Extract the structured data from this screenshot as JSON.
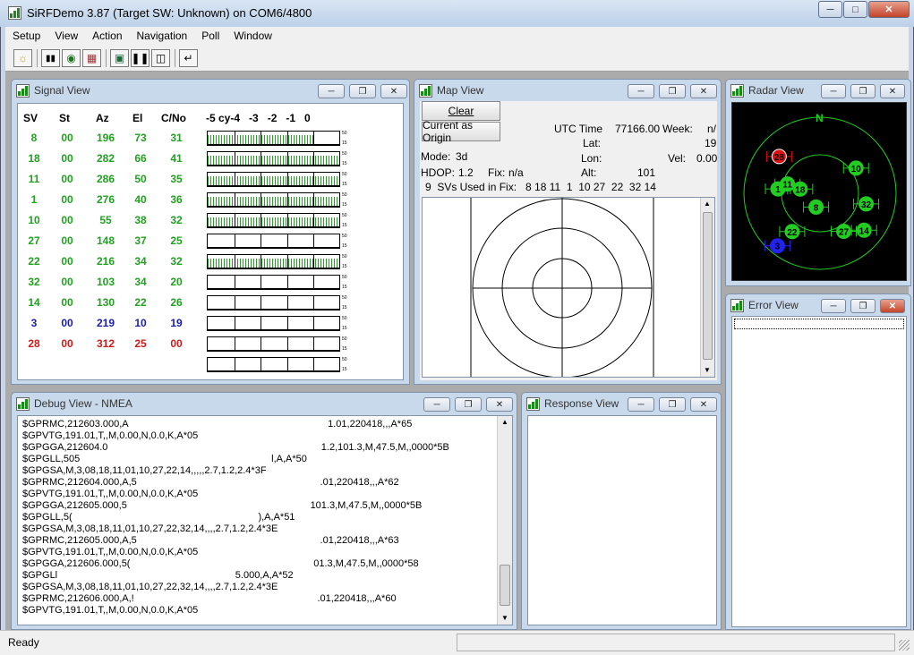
{
  "app": {
    "title": "SiRFDemo 3.87 (Target SW: Unknown) on COM6/4800"
  },
  "menu": [
    "Setup",
    "View",
    "Action",
    "Navigation",
    "Poll",
    "Window"
  ],
  "toolbar": {
    "icons": [
      "sun-icon",
      "signal-icon",
      "radar-icon",
      "grid-icon",
      "connect-icon",
      "pause-icon",
      "save-icon",
      "return-icon"
    ]
  },
  "signal_view": {
    "title": "Signal View",
    "headers": {
      "sv": "SV",
      "st": "St",
      "az": "Az",
      "el": "El",
      "cno": "C/No",
      "scale": "-5 cy-4   -3   -2   -1   0"
    },
    "scale_top": "50",
    "scale_bottom": "15",
    "rows": [
      {
        "sv": "8",
        "st": "00",
        "az": "196",
        "el": "73",
        "cno": "31",
        "color": "#22a022",
        "fill_pct": 80
      },
      {
        "sv": "18",
        "st": "00",
        "az": "282",
        "el": "66",
        "cno": "41",
        "color": "#22a022",
        "fill_pct": 100
      },
      {
        "sv": "11",
        "st": "00",
        "az": "286",
        "el": "50",
        "cno": "35",
        "color": "#22a022",
        "fill_pct": 100
      },
      {
        "sv": "1",
        "st": "00",
        "az": "276",
        "el": "40",
        "cno": "36",
        "color": "#22a022",
        "fill_pct": 100
      },
      {
        "sv": "10",
        "st": "00",
        "az": "55",
        "el": "38",
        "cno": "32",
        "color": "#22a022",
        "fill_pct": 100
      },
      {
        "sv": "27",
        "st": "00",
        "az": "148",
        "el": "37",
        "cno": "25",
        "color": "#22a022",
        "fill_pct": 0
      },
      {
        "sv": "22",
        "st": "00",
        "az": "216",
        "el": "34",
        "cno": "32",
        "color": "#22a022",
        "fill_pct": 100
      },
      {
        "sv": "32",
        "st": "00",
        "az": "103",
        "el": "34",
        "cno": "20",
        "color": "#22a022",
        "fill_pct": 0
      },
      {
        "sv": "14",
        "st": "00",
        "az": "130",
        "el": "22",
        "cno": "26",
        "color": "#22a022",
        "fill_pct": 0
      },
      {
        "sv": "3",
        "st": "00",
        "az": "219",
        "el": "10",
        "cno": "19",
        "color": "#1c1cb0",
        "fill_pct": 0
      },
      {
        "sv": "28",
        "st": "00",
        "az": "312",
        "el": "25",
        "cno": "00",
        "color": "#cc1c1c",
        "fill_pct": 0
      },
      {
        "sv": "",
        "st": "",
        "az": "",
        "el": "",
        "cno": "",
        "color": "#000000",
        "fill_pct": 0
      }
    ]
  },
  "map_view": {
    "title": "Map View",
    "clear_label": "Clear",
    "origin_label": "Current as Origin",
    "utc_label": "UTC Time",
    "utc_value": "77166.00",
    "week_label": "Week:",
    "week_value": "n/",
    "lat_label": "Lat:",
    "lat_value": "19",
    "lon_label": "Lon:",
    "vel_label": "Vel:",
    "vel_value": "0.00",
    "mode_label": "Mode:",
    "mode_value": "3d",
    "hdop_label": "HDOP:",
    "hdop_value": "1.2",
    "fix_label": "Fix:",
    "fix_value": "n/a",
    "alt_label": "Alt:",
    "alt_value": "101",
    "svs_text": "9  SVs Used in Fix:   8 18 11  1  10 27  22  32 14"
  },
  "radar_view": {
    "title": "Radar View",
    "north_label": "N",
    "satellites": [
      {
        "id": "28",
        "color": "#dd1111",
        "az": 312,
        "el": 25
      },
      {
        "id": "10",
        "color": "#22cc22",
        "az": 55,
        "el": 38
      },
      {
        "id": "1",
        "color": "#22cc22",
        "az": 276,
        "el": 40
      },
      {
        "id": "11",
        "color": "#22cc22",
        "az": 286,
        "el": 50
      },
      {
        "id": "18",
        "color": "#22cc22",
        "az": 282,
        "el": 66
      },
      {
        "id": "32",
        "color": "#22cc22",
        "az": 103,
        "el": 34
      },
      {
        "id": "8",
        "color": "#22cc22",
        "az": 196,
        "el": 73
      },
      {
        "id": "22",
        "color": "#22cc22",
        "az": 216,
        "el": 34
      },
      {
        "id": "27",
        "color": "#22cc22",
        "az": 148,
        "el": 37
      },
      {
        "id": "14",
        "color": "#22cc22",
        "az": 130,
        "el": 22
      },
      {
        "id": "3",
        "color": "#2222ee",
        "az": 219,
        "el": 10
      }
    ]
  },
  "error_view": {
    "title": "Error View"
  },
  "debug_view": {
    "title": "Debug View - NMEA",
    "lines": [
      "$GPRMC,212603.000,A                                                                         1.01,220418,,,A*65",
      "$GPVTG,191.01,T,,M,0.00,N,0.0,K,A*05",
      "$GPGGA,212604.0                                                                              1.2,101.3,M,47.5,M,,0000*5B",
      "$GPGLL,505                                                                      l,A,A*50",
      "$GPGSA,M,3,08,18,11,01,10,27,22,14,,,,,2.7,1.2,2.4*3F",
      "$GPRMC,212604.000,A,5                                                                   .01,220418,,,A*62",
      "$GPVTG,191.01,T,,M,0.00,N,0.0,K,A*05",
      "$GPGGA,212605.000,5                                                                   101.3,M,47.5,M,,0000*5B",
      "$GPGLL,5(                                                                    ),A,A*51",
      "$GPGSA,M,3,08,18,11,01,10,27,22,32,14,,,,2.7,1.2,2.4*3E",
      "$GPRMC,212605.000,A,5                                                                   .01,220418,,,A*63",
      "$GPVTG,191.01,T,,M,0.00,N,0.0,K,A*05",
      "$GPGGA,212606.000,5(                                                                   01.3,M,47.5,M,,0000*58",
      "$GPGLl                                                                 5.000,A,A*52",
      "$GPGSA,M,3,08,18,11,01,10,27,22,32,14,,,,2.7,1.2,2.4*3E",
      "$GPRMC,212606.000,A,!                                                                   .01,220418,,,A*60",
      "$GPVTG,191.01,T,,M,0.00,N,0.0,K,A*05"
    ]
  },
  "response_view": {
    "title": "Response View"
  },
  "status": {
    "text": "Ready"
  }
}
